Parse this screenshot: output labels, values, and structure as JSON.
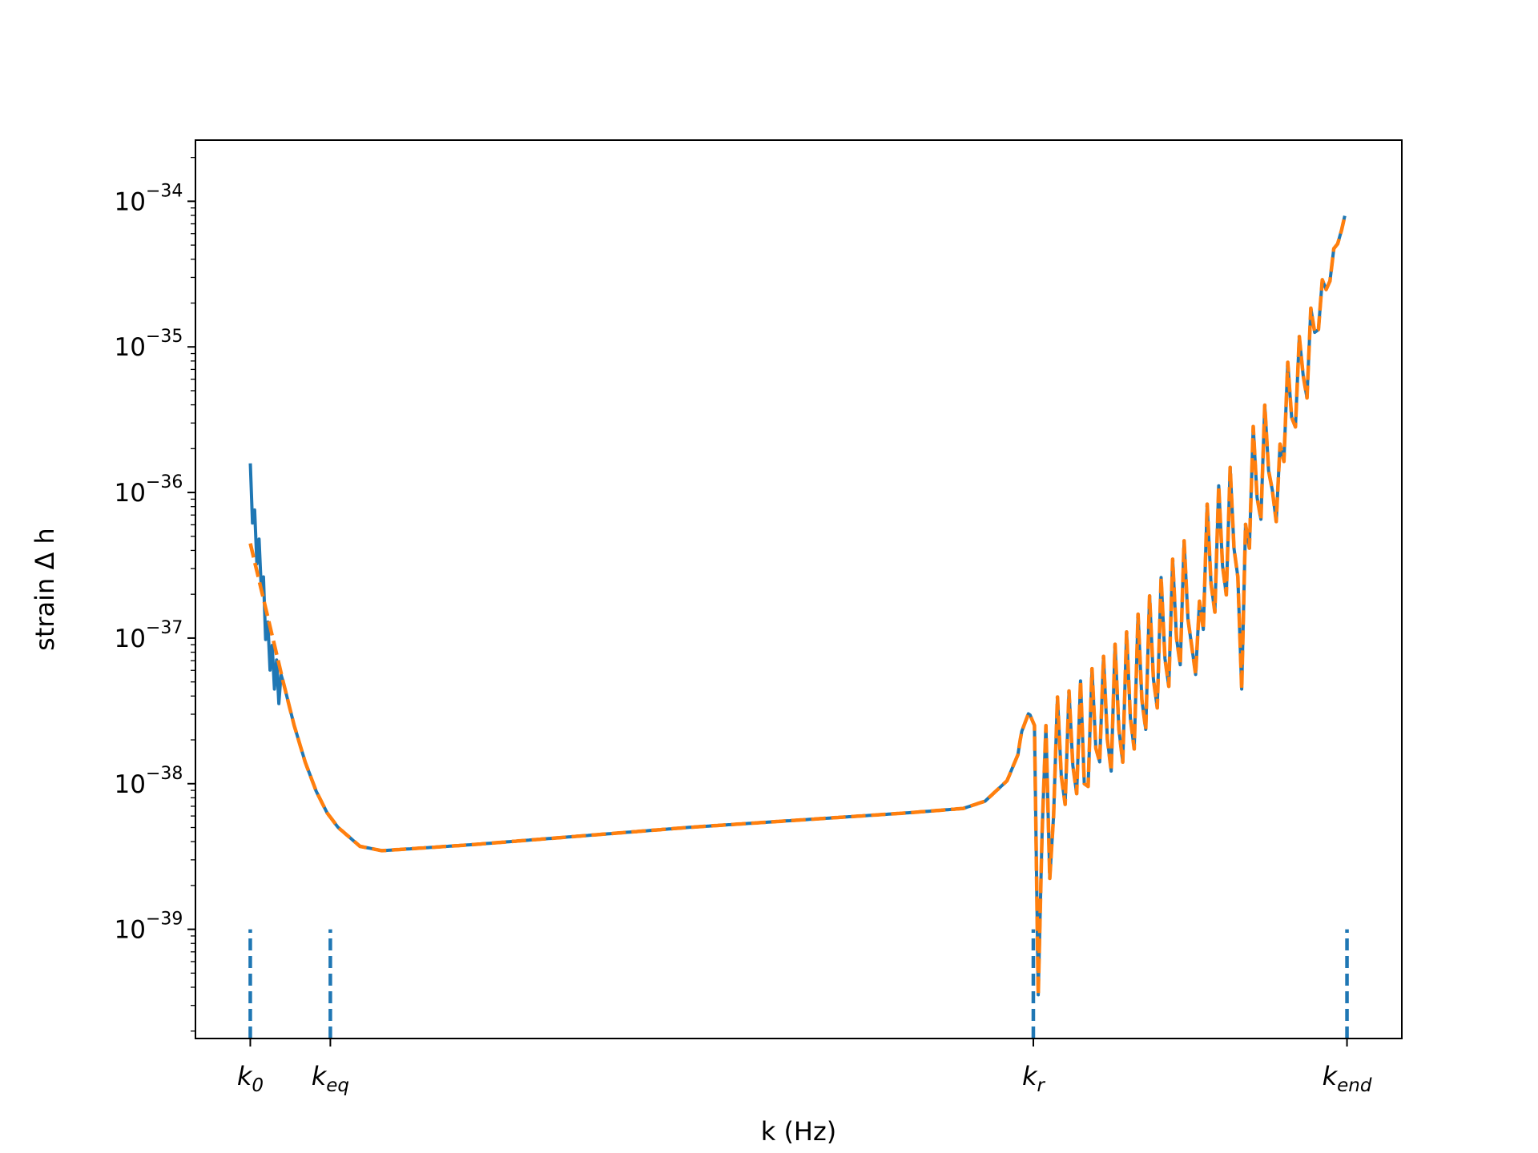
{
  "colors": {
    "series_1": "#1f77b4",
    "series_2": "#ff7f0e",
    "marker": "#1f77b4",
    "axes": "#000000",
    "background": "#ffffff"
  },
  "chart_data": {
    "type": "line",
    "title": "",
    "xlabel": "k (Hz)",
    "ylabel": "strain Δ h",
    "yscale": "log",
    "ylim_log10": [
      -39.75,
      -33.58
    ],
    "xlim": [
      -0.05,
      1.05
    ],
    "grid": false,
    "legend": "none",
    "yticks": [
      {
        "base": "10",
        "exp": "−39",
        "log10": -39
      },
      {
        "base": "10",
        "exp": "−38",
        "log10": -38
      },
      {
        "base": "10",
        "exp": "−37",
        "log10": -37
      },
      {
        "base": "10",
        "exp": "−36",
        "log10": -36
      },
      {
        "base": "10",
        "exp": "−35",
        "log10": -35
      },
      {
        "base": "10",
        "exp": "−34",
        "log10": -34
      }
    ],
    "xticks": [
      {
        "main": "k",
        "sub": "0",
        "x": 0.0
      },
      {
        "main": "k",
        "sub": "eq",
        "x": 0.073
      },
      {
        "main": "k",
        "sub": "r",
        "x": 0.714
      },
      {
        "main": "k",
        "sub": "end",
        "x": 1.0
      }
    ],
    "vertical_markers": {
      "x": [
        0.0,
        0.073,
        0.714,
        1.0
      ],
      "y_from_log10": -39.75,
      "y_to_log10": -39.0,
      "style": "dashed"
    },
    "series": [
      {
        "style": "solid",
        "color_key": "series_1",
        "envelope_upper": [
          [
            0.0,
            -35.8
          ],
          [
            0.005,
            -36.2
          ],
          [
            0.01,
            -36.4
          ],
          [
            0.015,
            -36.85
          ],
          [
            0.02,
            -37.05
          ],
          [
            0.03,
            -37.3
          ],
          [
            0.04,
            -37.6
          ],
          [
            0.05,
            -37.85
          ],
          [
            0.06,
            -38.05
          ],
          [
            0.07,
            -38.2
          ],
          [
            0.08,
            -38.3
          ],
          [
            0.1,
            -38.43
          ],
          [
            0.12,
            -38.46
          ],
          [
            0.2,
            -38.42
          ],
          [
            0.3,
            -38.36
          ],
          [
            0.4,
            -38.3
          ],
          [
            0.5,
            -38.25
          ],
          [
            0.6,
            -38.2
          ],
          [
            0.65,
            -38.17
          ],
          [
            0.67,
            -38.12
          ],
          [
            0.69,
            -37.98
          ],
          [
            0.7,
            -37.8
          ],
          [
            0.703,
            -37.65
          ],
          [
            0.71,
            -37.51
          ],
          [
            0.715,
            -37.6
          ],
          [
            0.72,
            -37.83
          ],
          [
            0.726,
            -37.58
          ],
          [
            0.732,
            -37.42
          ],
          [
            0.75,
            -37.35
          ],
          [
            0.8,
            -36.95
          ],
          [
            0.85,
            -36.35
          ],
          [
            0.9,
            -35.75
          ],
          [
            0.95,
            -35.05
          ],
          [
            0.985,
            -34.4
          ],
          [
            0.997,
            -34.1
          ]
        ],
        "envelope_lower": [
          [
            0.0,
            -35.8
          ],
          [
            0.005,
            -36.55
          ],
          [
            0.01,
            -36.7
          ],
          [
            0.015,
            -36.9
          ],
          [
            0.02,
            -37.1
          ],
          [
            0.03,
            -37.32
          ],
          [
            0.72,
            -38.6
          ],
          [
            0.735,
            -38.55
          ],
          [
            0.75,
            -38.4
          ],
          [
            0.78,
            -38.3
          ],
          [
            0.8,
            -38.2
          ],
          [
            0.81,
            -38.1
          ],
          [
            0.85,
            -37.5
          ],
          [
            0.9,
            -36.95
          ],
          [
            0.95,
            -35.9
          ],
          [
            0.99,
            -34.4
          ],
          [
            0.997,
            -34.15
          ]
        ],
        "dips": [
          {
            "x": 0.718,
            "log10": -39.45
          },
          {
            "x": 0.724,
            "log10": -39.05
          },
          {
            "x": 0.729,
            "log10": -38.65
          },
          {
            "x": 0.737,
            "log10": -38.5
          },
          {
            "x": 0.744,
            "log10": -38.1
          },
          {
            "x": 0.76,
            "log10": -38.0
          },
          {
            "x": 0.774,
            "log10": -37.85
          },
          {
            "x": 0.787,
            "log10": -37.68
          },
          {
            "x": 0.8,
            "log10": -37.9
          },
          {
            "x": 0.815,
            "log10": -37.5
          },
          {
            "x": 0.832,
            "log10": -37.35
          },
          {
            "x": 0.843,
            "log10": -37.7
          },
          {
            "x": 0.862,
            "log10": -37.25
          },
          {
            "x": 0.875,
            "log10": -36.95
          },
          {
            "x": 0.888,
            "log10": -36.8
          },
          {
            "x": 0.904,
            "log10": -37.35
          },
          {
            "x": 0.92,
            "log10": -36.5
          },
          {
            "x": 0.935,
            "log10": -36.2
          },
          {
            "x": 0.948,
            "log10": -35.6
          },
          {
            "x": 0.963,
            "log10": -35.35
          },
          {
            "x": 0.975,
            "log10": -35.0
          }
        ]
      },
      {
        "style": "dashed",
        "color_key": "series_2",
        "offset_start_log10": -36.35
      }
    ]
  }
}
